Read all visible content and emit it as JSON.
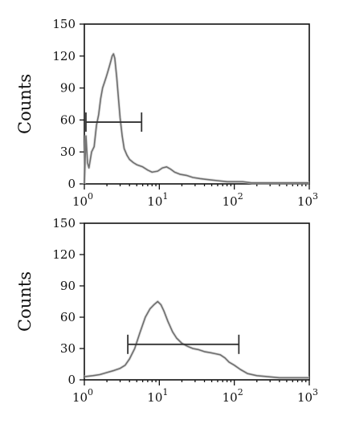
{
  "chart_data": [
    {
      "type": "line",
      "panel": "top",
      "ylabel": "Counts",
      "ylim": [
        0,
        150
      ],
      "xscale": "log",
      "xlim": [
        1,
        1000
      ],
      "yticks": [
        "0",
        "30",
        "60",
        "90",
        "120",
        "150"
      ],
      "xticks": [
        {
          "base": "10",
          "exp": "0",
          "value": 1
        },
        {
          "base": "10",
          "exp": "1",
          "value": 10
        },
        {
          "base": "10",
          "exp": "2",
          "value": 100
        },
        {
          "base": "10",
          "exp": "3",
          "value": 1000
        }
      ],
      "gate": {
        "x_start": 1.05,
        "x_end": 5.8,
        "y": 58
      },
      "x": [
        1.0,
        1.05,
        1.1,
        1.15,
        1.25,
        1.35,
        1.45,
        1.55,
        1.65,
        1.75,
        1.85,
        1.95,
        2.05,
        2.15,
        2.25,
        2.35,
        2.45,
        2.55,
        2.7,
        2.85,
        3.0,
        3.2,
        3.4,
        3.7,
        4.0,
        4.5,
        5.0,
        6.0,
        7.0,
        8.0,
        9.5,
        11,
        12.5,
        14,
        16,
        19,
        23,
        28,
        35,
        45,
        60,
        80,
        100,
        130,
        170,
        230,
        300,
        400,
        550,
        700,
        850,
        1000
      ],
      "values": [
        0,
        45,
        20,
        15,
        30,
        35,
        55,
        65,
        80,
        90,
        95,
        100,
        105,
        110,
        115,
        120,
        122,
        118,
        100,
        80,
        62,
        45,
        33,
        27,
        23,
        20,
        18,
        16,
        13,
        11,
        12,
        15,
        16,
        14,
        11,
        9,
        8,
        6,
        5,
        4,
        3,
        2,
        2,
        2,
        1,
        1,
        1,
        1,
        1,
        1,
        1,
        1
      ]
    },
    {
      "type": "line",
      "panel": "bottom",
      "ylabel": "Counts",
      "ylim": [
        0,
        150
      ],
      "xscale": "log",
      "xlim": [
        1,
        1000
      ],
      "yticks": [
        "0",
        "30",
        "60",
        "90",
        "120",
        "150"
      ],
      "xticks": [
        {
          "base": "10",
          "exp": "0",
          "value": 1
        },
        {
          "base": "10",
          "exp": "1",
          "value": 10
        },
        {
          "base": "10",
          "exp": "2",
          "value": 100
        },
        {
          "base": "10",
          "exp": "3",
          "value": 1000
        }
      ],
      "gate": {
        "x_start": 3.8,
        "x_end": 115,
        "y": 34
      },
      "x": [
        1.0,
        1.3,
        1.6,
        2.0,
        2.5,
        3.0,
        3.5,
        4.0,
        4.7,
        5.5,
        6.5,
        7.5,
        8.5,
        9.5,
        10.5,
        11.5,
        13,
        15,
        17,
        20,
        24,
        28,
        33,
        40,
        48,
        56,
        65,
        75,
        85,
        100,
        120,
        150,
        200,
        280,
        400,
        600,
        1000
      ],
      "values": [
        3,
        4,
        5,
        7,
        9,
        11,
        14,
        20,
        30,
        45,
        60,
        68,
        72,
        75,
        72,
        66,
        56,
        46,
        40,
        35,
        32,
        30,
        29,
        27,
        26,
        25,
        24,
        21,
        17,
        14,
        10,
        6,
        4,
        3,
        2,
        2,
        2
      ]
    }
  ]
}
